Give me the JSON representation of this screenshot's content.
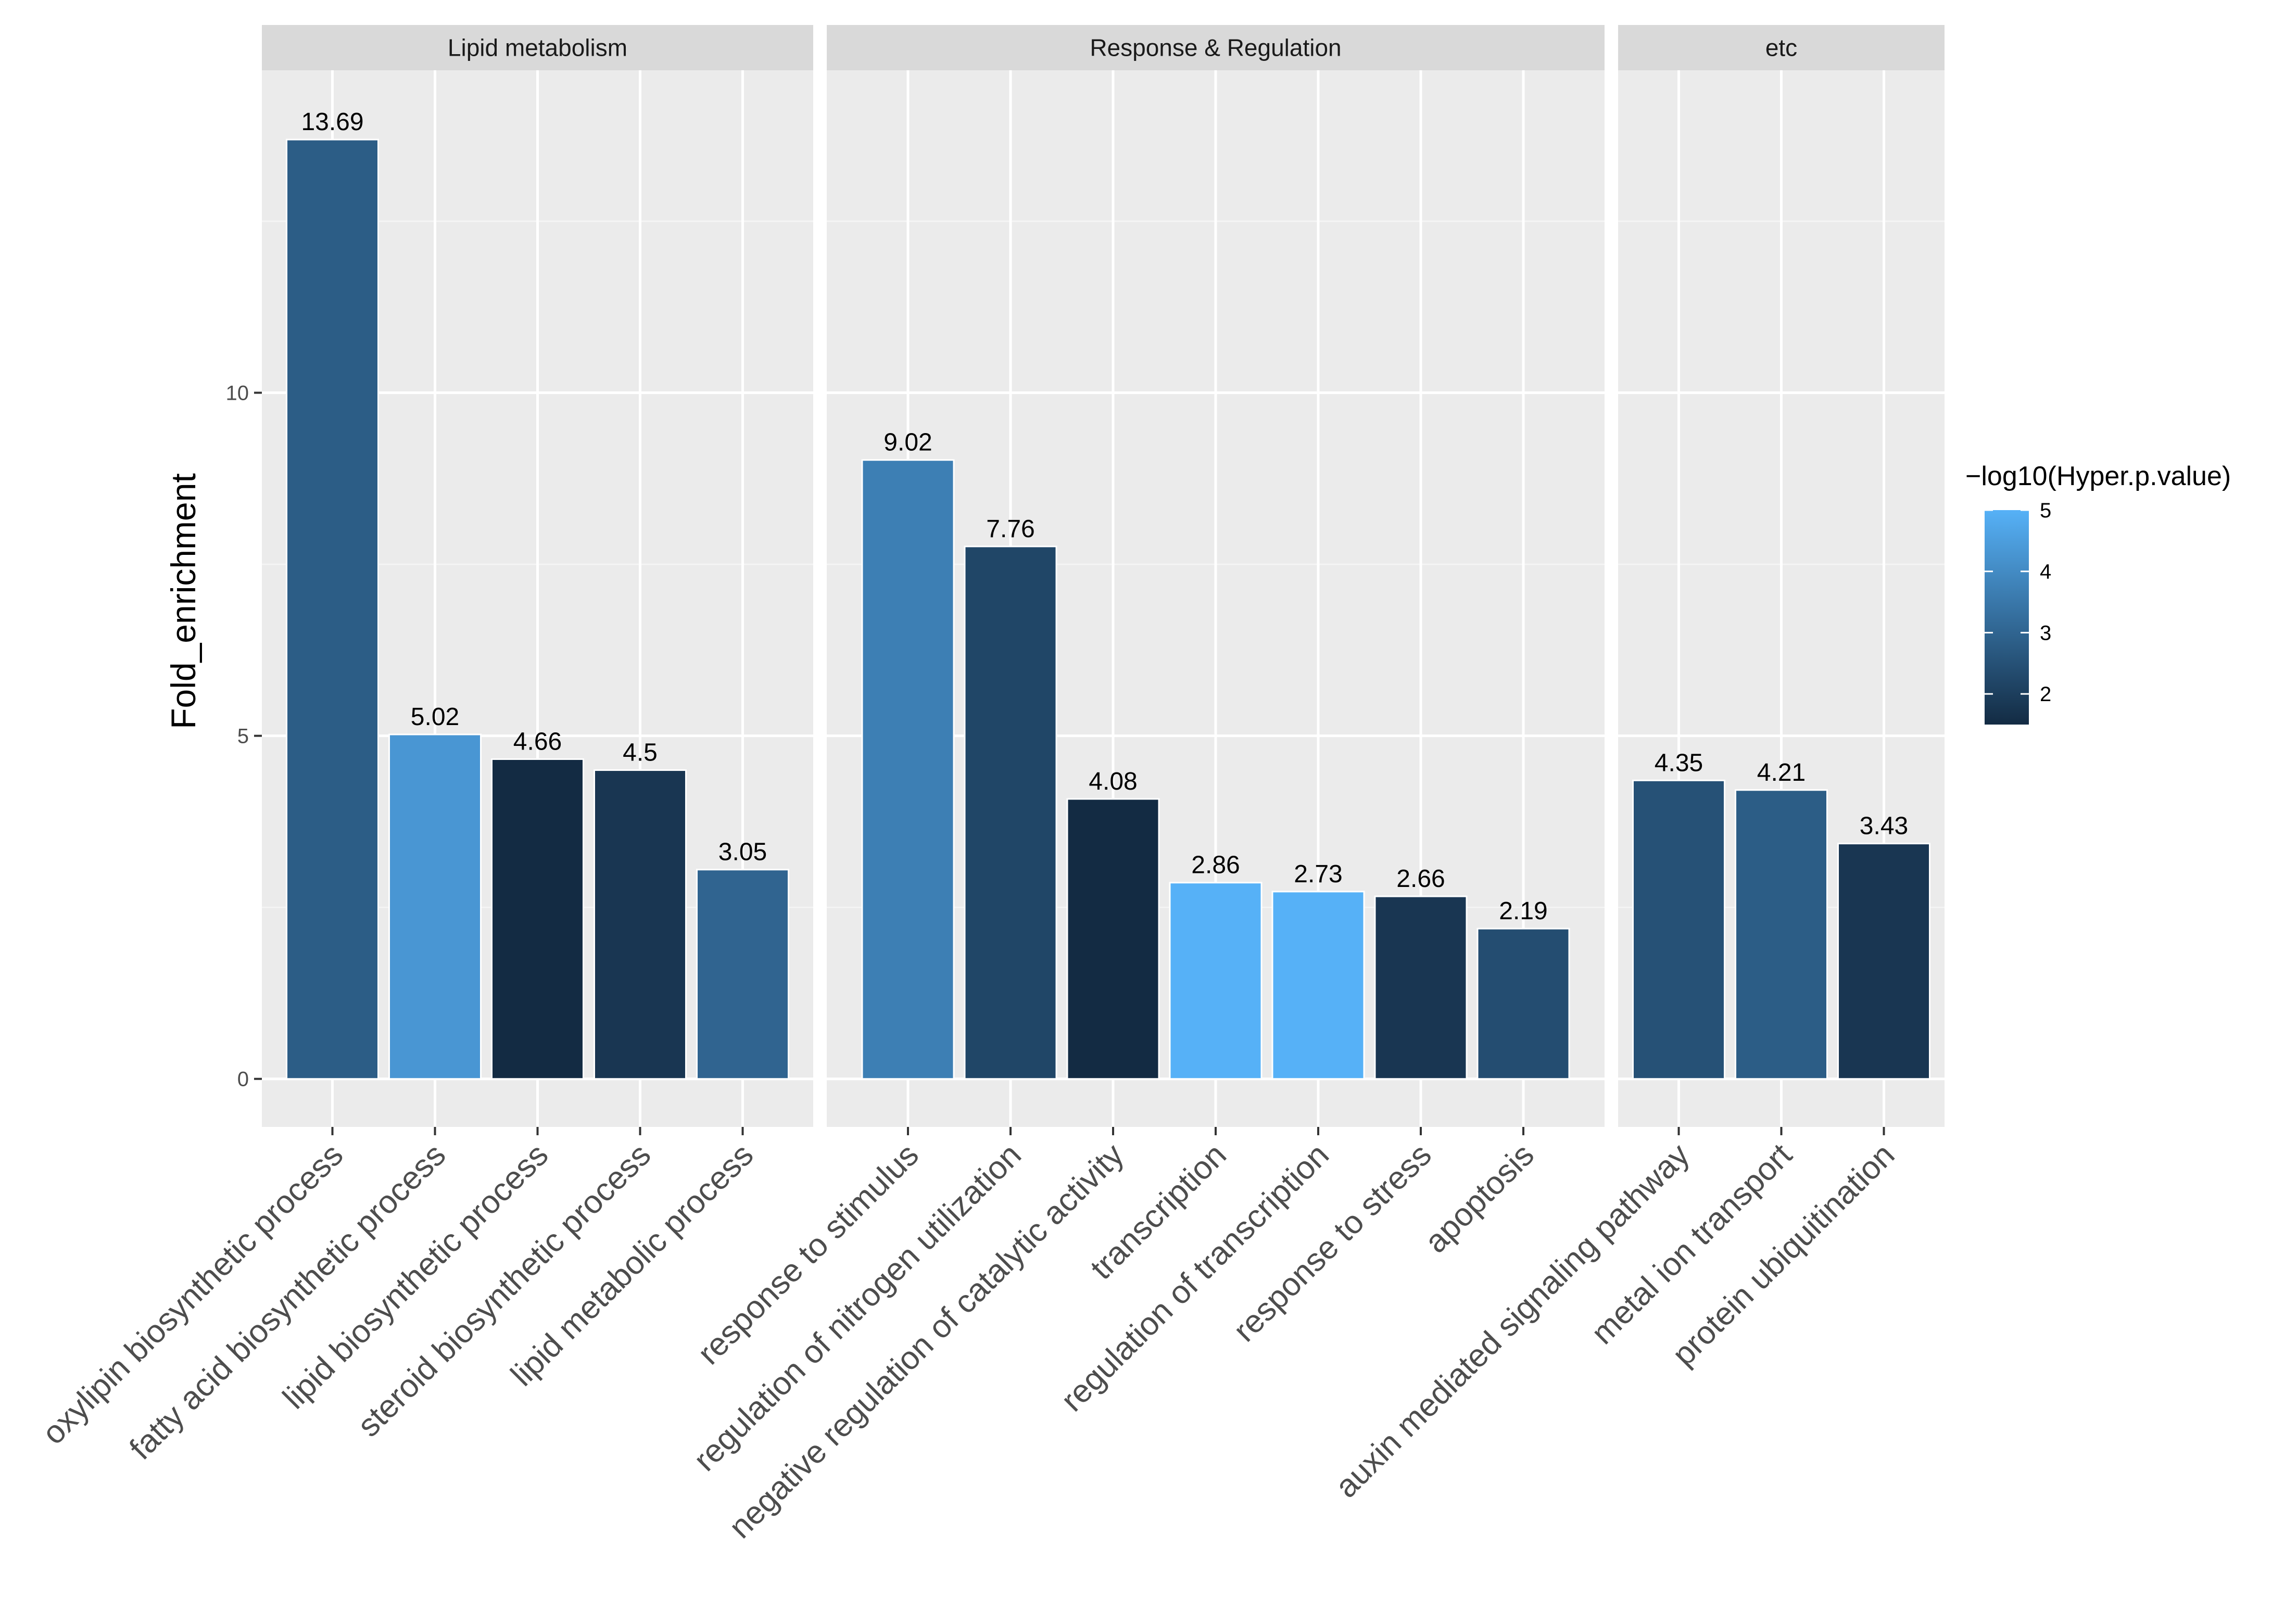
{
  "chart_data": {
    "type": "bar",
    "ylabel": "Fold_enrichment",
    "ylim": [
      -0.7,
      14.7
    ],
    "yticks": [
      0,
      5,
      10
    ],
    "ytick_labels": [
      "0",
      "5",
      "10"
    ],
    "facets": [
      {
        "name": "Lipid metabolism",
        "categories": [
          "oxylipin biosynthetic process",
          "fatty acid biosynthetic process",
          "lipid biosynthetic process",
          "steroid biosynthetic process",
          "lipid metabolic process"
        ],
        "values": [
          13.69,
          5.02,
          4.66,
          4.5,
          3.05
        ],
        "value_labels": [
          "13.69",
          "5.02",
          "4.66",
          "4.5",
          "3.05"
        ],
        "neglog10_p": [
          2.8,
          4.3,
          1.5,
          1.8,
          3.0
        ]
      },
      {
        "name": "Response & Regulation",
        "categories": [
          "response to stimulus",
          "regulation of nitrogen utilization",
          "negative regulation of catalytic activity",
          "transcription",
          "regulation of transcription",
          "response to stress",
          "apoptosis"
        ],
        "values": [
          9.02,
          7.76,
          4.08,
          2.86,
          2.73,
          2.66,
          2.19
        ],
        "value_labels": [
          "9.02",
          "7.76",
          "4.08",
          "2.86",
          "2.73",
          "2.66",
          "2.19"
        ],
        "neglog10_p": [
          3.7,
          2.2,
          1.4,
          5.0,
          5.0,
          1.8,
          2.4
        ]
      },
      {
        "name": "etc",
        "categories": [
          "auxin mediated signaling pathway",
          "metal ion transport",
          "protein ubiquitination"
        ],
        "values": [
          4.35,
          4.21,
          3.43
        ],
        "value_labels": [
          "4.35",
          "4.21",
          "3.43"
        ],
        "neglog10_p": [
          2.5,
          2.8,
          1.8
        ]
      }
    ],
    "legend": {
      "title": "−log10(Hyper.p.value)",
      "position": "right",
      "range": [
        1.5,
        5.0
      ],
      "ticks": [
        2,
        3,
        4,
        5
      ],
      "tick_labels": [
        "2",
        "3",
        "4",
        "5"
      ],
      "color_low": "#132b43",
      "color_high": "#56b1f7"
    }
  }
}
